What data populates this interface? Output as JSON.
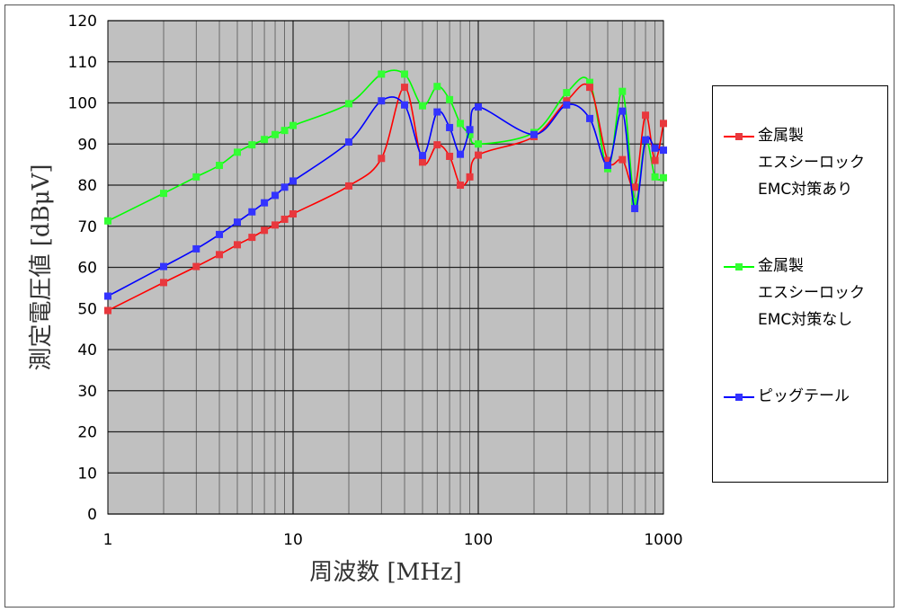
{
  "chart_data": {
    "type": "line",
    "xlabel": "周波数 [MHz]",
    "ylabel": "測定電圧値 [dBμV]",
    "x_scale": "log",
    "xlim": [
      1,
      1000
    ],
    "ylim": [
      0,
      120
    ],
    "x_tick_labels": [
      "1",
      "10",
      "100",
      "1000"
    ],
    "y_ticks": [
      0,
      10,
      20,
      30,
      40,
      50,
      60,
      70,
      80,
      90,
      100,
      110,
      120
    ],
    "grid": true,
    "legend_position": "right",
    "plot_background": "#c0c0c0",
    "series": [
      {
        "name_lines": [
          "金属製",
          "エスシーロック",
          "EMC対策あり"
        ],
        "color": "#ff0000",
        "marker_color": "#e8383d",
        "x": [
          1,
          2,
          3,
          4,
          5,
          6,
          7,
          8,
          9,
          10,
          20,
          30,
          40,
          50,
          60,
          70,
          80,
          90,
          100,
          200,
          300,
          400,
          500,
          600,
          700,
          800,
          900,
          1000
        ],
        "y": [
          49.5,
          56.3,
          60.2,
          63.1,
          65.5,
          67.3,
          69,
          70.3,
          71.7,
          73,
          79.8,
          86.5,
          103.8,
          85.6,
          89.8,
          87,
          80,
          82,
          87.3,
          91.8,
          100.5,
          103.8,
          86,
          86.2,
          79.5,
          97,
          86,
          95
        ]
      },
      {
        "name_lines": [
          "金属製",
          "エスシーロック",
          "EMC対策なし"
        ],
        "color": "#00ff00",
        "marker_color": "#33ff33",
        "x": [
          1,
          2,
          3,
          4,
          5,
          6,
          7,
          8,
          9,
          10,
          20,
          30,
          40,
          50,
          60,
          70,
          80,
          90,
          100,
          200,
          300,
          400,
          500,
          600,
          700,
          800,
          900,
          1000
        ],
        "y": [
          71.3,
          78,
          82,
          84.8,
          88,
          89.8,
          91.1,
          92.3,
          93.3,
          94.5,
          99.8,
          107,
          107,
          99.3,
          104,
          100.8,
          95,
          92.3,
          90,
          92.8,
          102.5,
          105,
          84,
          102.8,
          76,
          91,
          82,
          81.8
        ]
      },
      {
        "name_lines": [
          "ピッグテール"
        ],
        "color": "#0000ff",
        "marker_color": "#3333ff",
        "x": [
          1,
          2,
          3,
          4,
          5,
          6,
          7,
          8,
          9,
          10,
          20,
          30,
          40,
          50,
          60,
          70,
          80,
          90,
          100,
          200,
          300,
          400,
          500,
          600,
          700,
          800,
          900,
          1000
        ],
        "y": [
          53,
          60.2,
          64.5,
          68,
          71,
          73.5,
          75.7,
          77.5,
          79.5,
          81,
          90.5,
          100.5,
          99.5,
          87.2,
          97.8,
          94,
          87.5,
          93.5,
          99,
          92.3,
          99.5,
          96.2,
          84.8,
          98,
          74.3,
          91,
          89,
          88.5
        ]
      }
    ]
  }
}
